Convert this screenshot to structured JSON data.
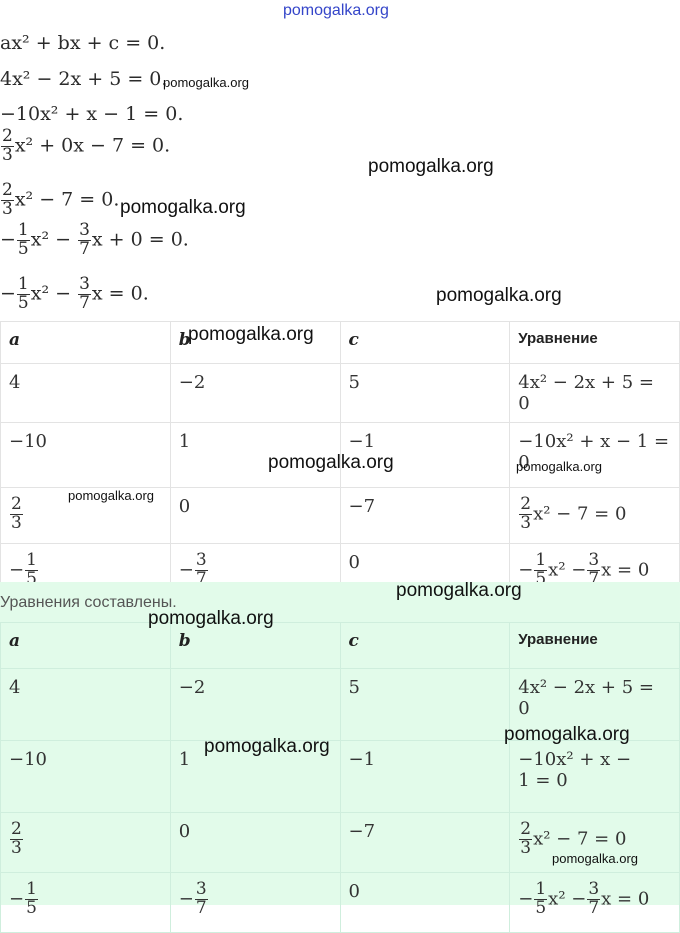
{
  "watermark": "pomogalka.org",
  "equations": {
    "e1": "ax² + bx + c = 0.",
    "e2": "4x² − 2x + 5 = 0.",
    "e3": "−10x² + x − 1 = 0.",
    "e4_tail": "x² + 0x − 7 = 0.",
    "e5_tail": "x² − 7 = 0.",
    "e6_mid": "x² −",
    "e6_tail": "x + 0 = 0.",
    "e7_mid": "x² −",
    "e7_tail": "x = 0."
  },
  "fractions": {
    "two": "2",
    "three": "3",
    "one": "1",
    "five": "5",
    "seven": "7"
  },
  "table": {
    "headers": [
      "a",
      "b",
      "c",
      "Уравнение"
    ],
    "r1": [
      "4",
      "−2",
      "5",
      "4x² − 2x + 5 = 0"
    ],
    "r2": [
      "−10",
      "1",
      "−1",
      "−10x² + x − 1 =",
      "0"
    ],
    "r3": [
      "0",
      "−7",
      "x² − 7 = 0"
    ],
    "r4": [
      "0",
      "x² −",
      "x = 0"
    ]
  },
  "result_text": "Уравнения составлены.",
  "table2": {
    "headers": [
      "a",
      "b",
      "c",
      "Уравнение"
    ],
    "r1": [
      "4",
      "−2",
      "5",
      "4x² − 2x + 5 =",
      "0"
    ],
    "r2": [
      "−10",
      "1",
      "−1",
      "−10x² + x −",
      "1 = 0"
    ],
    "r3": [
      "0",
      "−7",
      "x² − 7 = 0"
    ],
    "r4": [
      "0",
      "x² −",
      "x = 0"
    ]
  }
}
